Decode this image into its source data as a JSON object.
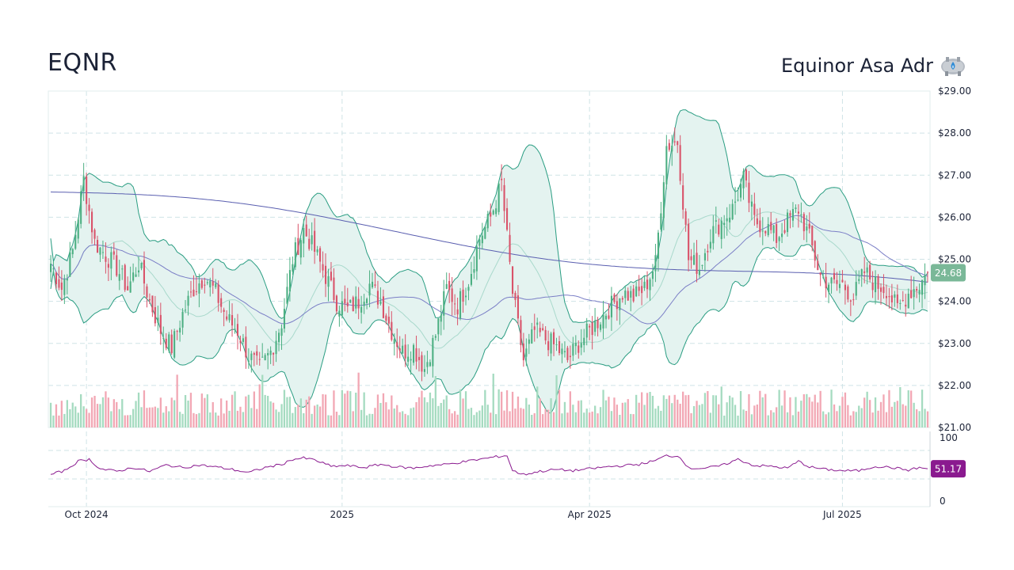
{
  "header": {
    "ticker": "EQNR",
    "company": "Equinor Asa Adr"
  },
  "colors": {
    "up": "#4caf82",
    "down": "#d9536a",
    "up_volume": "#a5dbc0",
    "down_volume": "#f2a7b4",
    "bollinger_line": "#2a9d82",
    "bollinger_fill": "#e4f3f0",
    "ma_long": "#5a5fb0",
    "ma_mid": "#7a7ec6",
    "rsi": "#8a1a8f",
    "price_badge": "#7ab898",
    "rsi_badge": "#8a1a8f",
    "grid": "#cfe3e6"
  },
  "chart_data": {
    "type": "candlestick",
    "x_ticks": [
      "Oct 2024",
      "2025",
      "Apr 2025",
      "Jul 2025"
    ],
    "price_axis": {
      "range": [
        21.0,
        29.0
      ],
      "ticks": [
        "$29.00",
        "$28.00",
        "$27.00",
        "$26.00",
        "$25.00",
        "$24.00",
        "$23.00",
        "$22.00",
        "$21.00"
      ]
    },
    "last_price": "24.68",
    "rsi_axis": {
      "range": [
        0,
        100
      ],
      "ticks": [
        "100",
        "0"
      ]
    },
    "rsi_last": "51.17",
    "close_anchors": [
      [
        0,
        24.9
      ],
      [
        4,
        24.3
      ],
      [
        8,
        25.2
      ],
      [
        12,
        26.9
      ],
      [
        16,
        25.4
      ],
      [
        20,
        25.1
      ],
      [
        24,
        24.8
      ],
      [
        28,
        24.3
      ],
      [
        32,
        24.9
      ],
      [
        36,
        24.0
      ],
      [
        40,
        23.3
      ],
      [
        44,
        22.9
      ],
      [
        48,
        23.7
      ],
      [
        52,
        24.3
      ],
      [
        56,
        24.6
      ],
      [
        60,
        24.2
      ],
      [
        64,
        23.6
      ],
      [
        68,
        23.3
      ],
      [
        72,
        22.7
      ],
      [
        76,
        22.4
      ],
      [
        80,
        22.8
      ],
      [
        84,
        23.5
      ],
      [
        88,
        25.0
      ],
      [
        92,
        25.7
      ],
      [
        96,
        25.2
      ],
      [
        100,
        24.6
      ],
      [
        104,
        24.0
      ],
      [
        108,
        23.8
      ],
      [
        112,
        24.0
      ],
      [
        116,
        24.4
      ],
      [
        120,
        24.0
      ],
      [
        124,
        23.3
      ],
      [
        128,
        22.8
      ],
      [
        132,
        22.9
      ],
      [
        136,
        22.4
      ],
      [
        140,
        23.2
      ],
      [
        144,
        24.3
      ],
      [
        148,
        23.9
      ],
      [
        152,
        24.5
      ],
      [
        156,
        25.5
      ],
      [
        160,
        26.0
      ],
      [
        164,
        26.8
      ],
      [
        168,
        24.2
      ],
      [
        172,
        22.6
      ],
      [
        176,
        23.3
      ],
      [
        180,
        23.1
      ],
      [
        184,
        22.9
      ],
      [
        188,
        22.6
      ],
      [
        192,
        23.0
      ],
      [
        196,
        23.3
      ],
      [
        200,
        23.6
      ],
      [
        204,
        23.9
      ],
      [
        208,
        24.2
      ],
      [
        212,
        24.1
      ],
      [
        216,
        24.3
      ],
      [
        220,
        24.9
      ],
      [
        224,
        27.7
      ],
      [
        228,
        27.8
      ],
      [
        232,
        25.0
      ],
      [
        236,
        24.8
      ],
      [
        240,
        25.6
      ],
      [
        244,
        25.9
      ],
      [
        248,
        26.2
      ],
      [
        252,
        26.9
      ],
      [
        256,
        25.9
      ],
      [
        260,
        25.8
      ],
      [
        264,
        25.5
      ],
      [
        268,
        25.9
      ],
      [
        272,
        26.2
      ],
      [
        276,
        25.5
      ],
      [
        280,
        24.6
      ],
      [
        284,
        24.4
      ],
      [
        288,
        24.4
      ],
      [
        292,
        24.1
      ],
      [
        296,
        24.7
      ],
      [
        300,
        24.4
      ],
      [
        304,
        24.3
      ],
      [
        308,
        23.8
      ],
      [
        312,
        24.2
      ],
      [
        316,
        24.4
      ],
      [
        319,
        24.68
      ]
    ],
    "rsi_anchors": [
      [
        0,
        42
      ],
      [
        5,
        48
      ],
      [
        10,
        63
      ],
      [
        14,
        66
      ],
      [
        18,
        51
      ],
      [
        24,
        47
      ],
      [
        30,
        53
      ],
      [
        36,
        47
      ],
      [
        42,
        57
      ],
      [
        48,
        53
      ],
      [
        54,
        57
      ],
      [
        60,
        54
      ],
      [
        66,
        50
      ],
      [
        72,
        45
      ],
      [
        78,
        53
      ],
      [
        84,
        58
      ],
      [
        88,
        66
      ],
      [
        92,
        68
      ],
      [
        96,
        65
      ],
      [
        102,
        55
      ],
      [
        108,
        56
      ],
      [
        114,
        53
      ],
      [
        120,
        58
      ],
      [
        126,
        54
      ],
      [
        132,
        52
      ],
      [
        138,
        56
      ],
      [
        144,
        58
      ],
      [
        150,
        62
      ],
      [
        156,
        66
      ],
      [
        162,
        70
      ],
      [
        166,
        72
      ],
      [
        168,
        48
      ],
      [
        172,
        42
      ],
      [
        178,
        47
      ],
      [
        184,
        50
      ],
      [
        190,
        48
      ],
      [
        196,
        51
      ],
      [
        202,
        54
      ],
      [
        208,
        56
      ],
      [
        214,
        58
      ],
      [
        220,
        64
      ],
      [
        224,
        72
      ],
      [
        229,
        70
      ],
      [
        232,
        52
      ],
      [
        238,
        52
      ],
      [
        244,
        56
      ],
      [
        250,
        66
      ],
      [
        256,
        56
      ],
      [
        262,
        55
      ],
      [
        268,
        52
      ],
      [
        272,
        63
      ],
      [
        276,
        54
      ],
      [
        282,
        50
      ],
      [
        288,
        48
      ],
      [
        294,
        48
      ],
      [
        300,
        55
      ],
      [
        306,
        53
      ],
      [
        312,
        49
      ],
      [
        316,
        53
      ],
      [
        319,
        51.17
      ]
    ]
  }
}
